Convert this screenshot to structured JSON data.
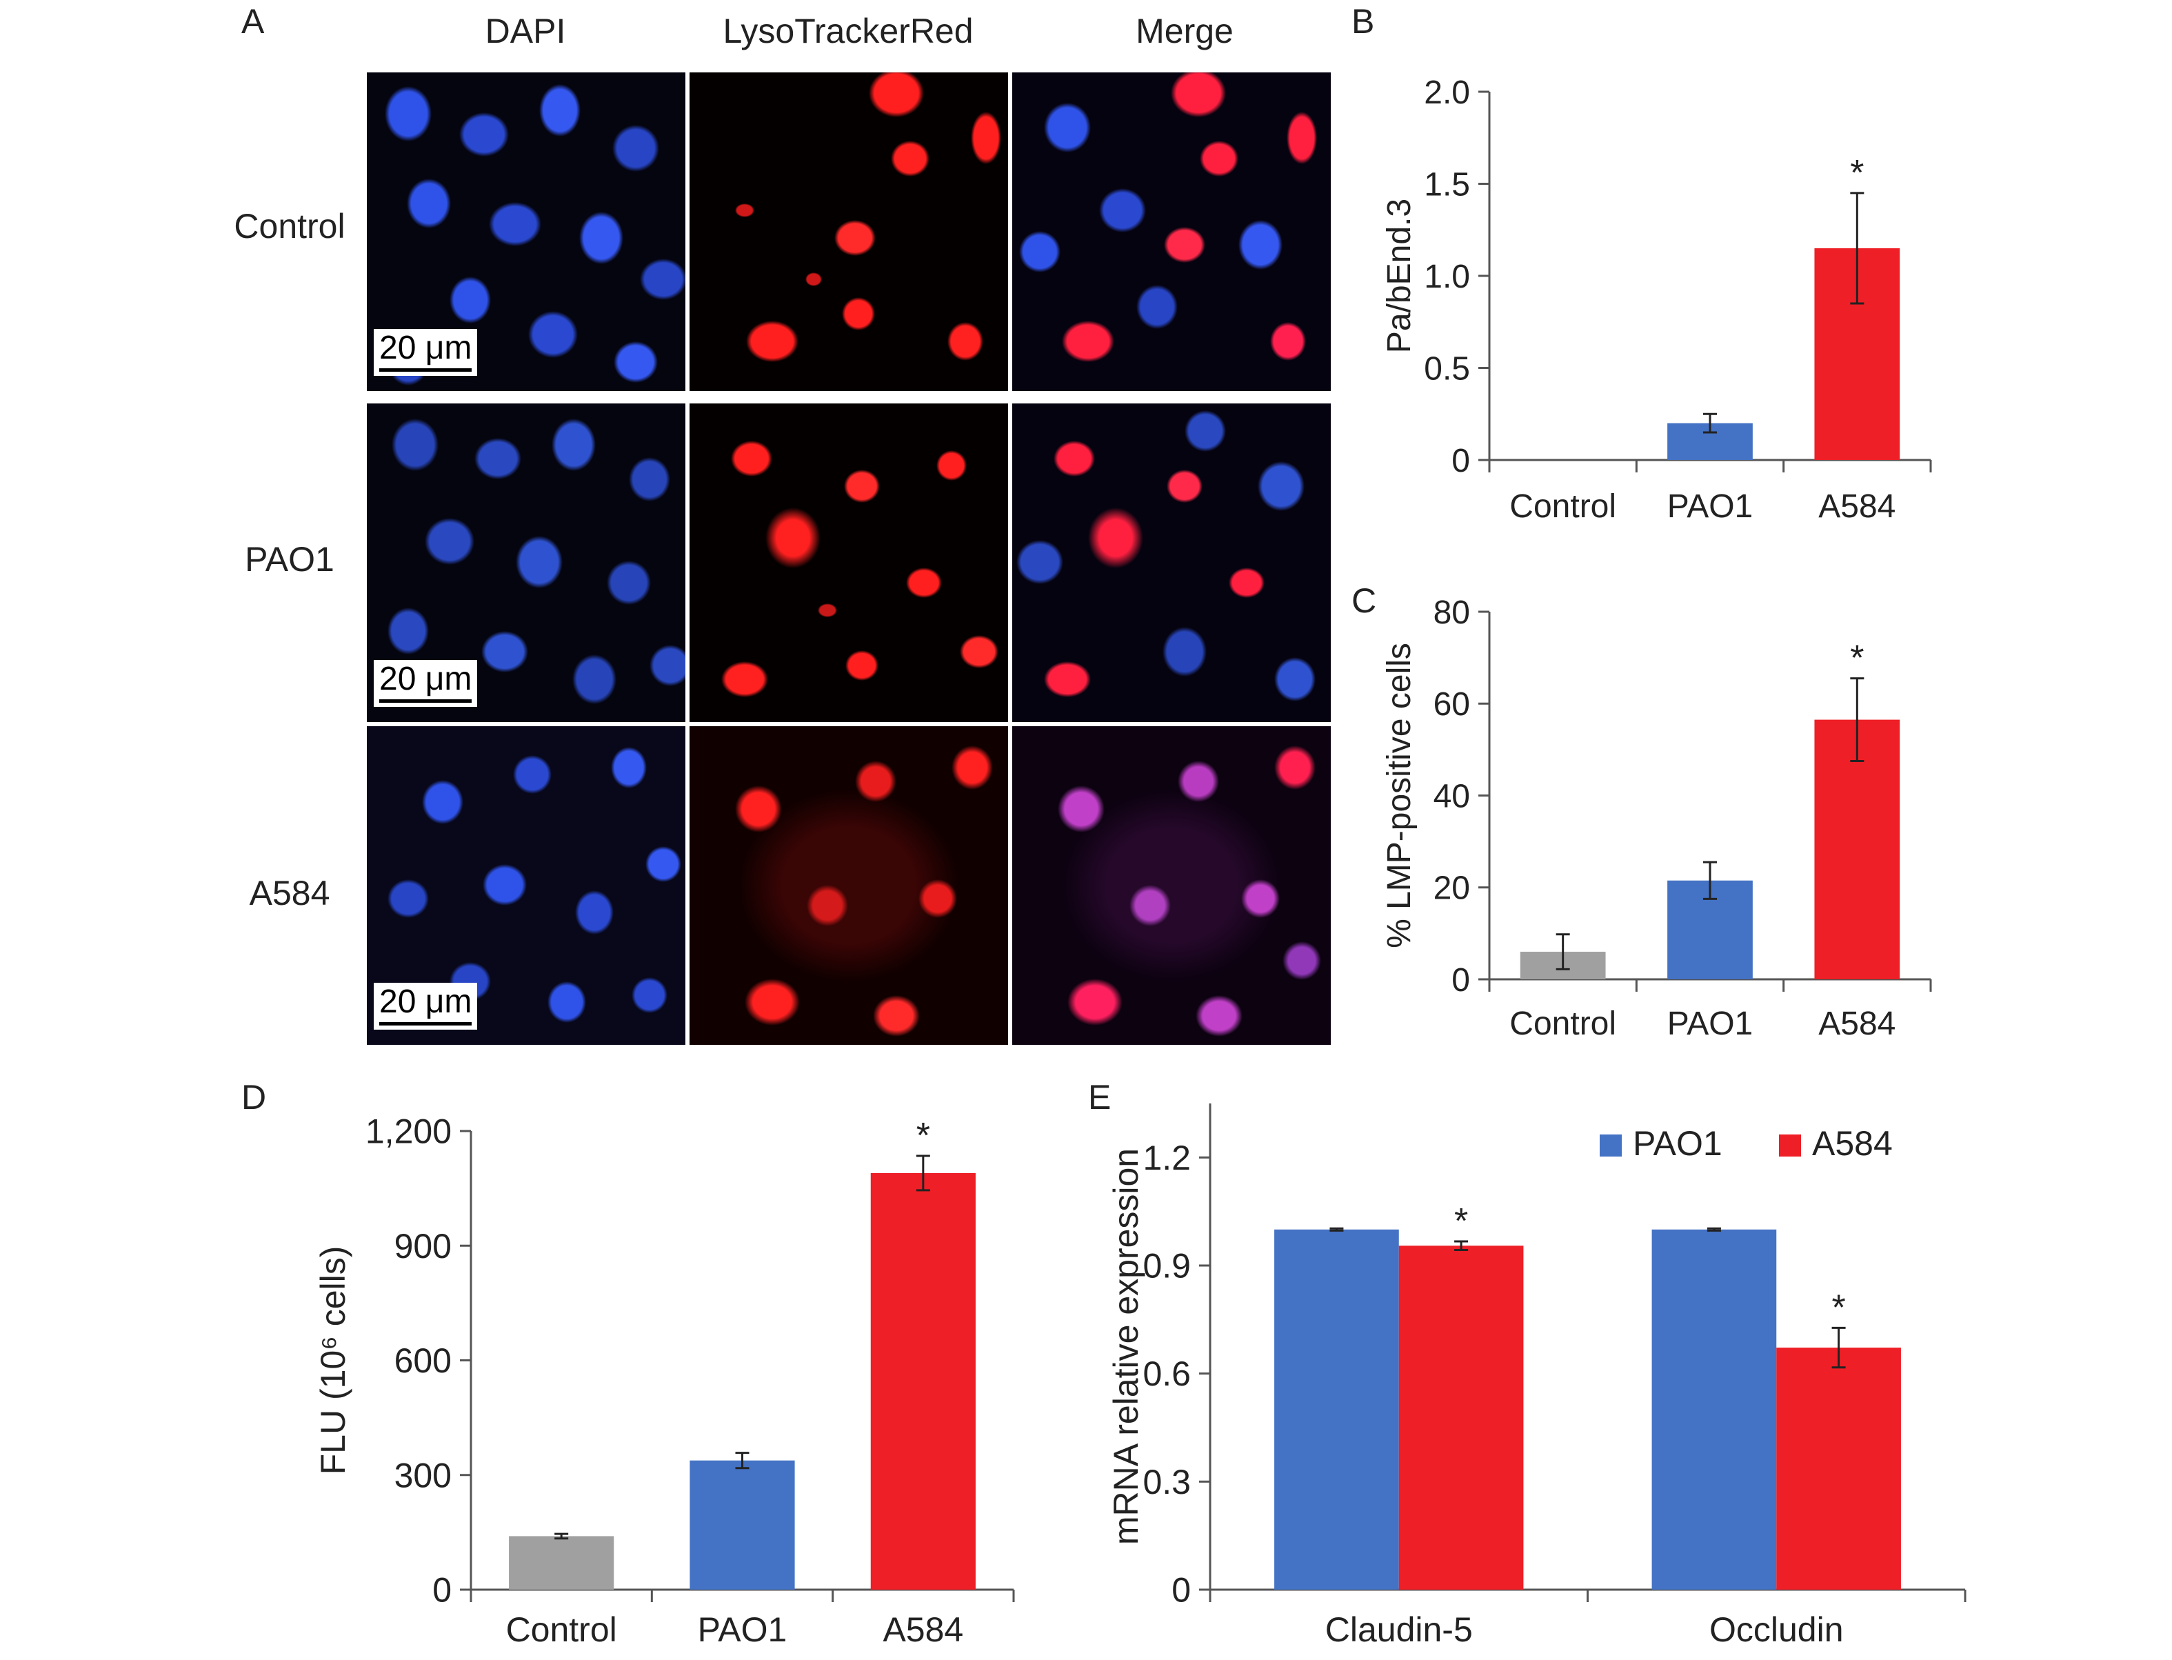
{
  "colors": {
    "control": "#a0a0a0",
    "pao1": "#4472c4",
    "a584": "#ee1f26",
    "dapi": "#2f53e8",
    "lyso": "#ff1f1f",
    "merge_mix": "#c040c8"
  },
  "panel_a": {
    "label": "A",
    "columns": [
      "DAPI",
      "LysoTrackerRed",
      "Merge"
    ],
    "rows": [
      "Control",
      "PAO1",
      "A584"
    ],
    "scale_bar": "20 μm"
  },
  "charts": [
    {
      "id": "B",
      "panel_label": "B",
      "type": "bar",
      "ylabel": "Pa/bEnd.3",
      "categories": [
        "Control",
        "PAO1",
        "A584"
      ],
      "values": [
        0,
        0.2,
        1.15
      ],
      "errors": [
        0,
        0.05,
        0.3
      ],
      "significance": [
        "",
        "",
        "*"
      ],
      "ylim": [
        0,
        2.0
      ],
      "yticks": [
        "0",
        "0.5",
        "1.0",
        "1.5",
        "2.0"
      ],
      "ytick_values": [
        0,
        0.5,
        1.0,
        1.5,
        2.0
      ],
      "bar_colors": [
        "#a0a0a0",
        "#4472c4",
        "#ee1f26"
      ]
    },
    {
      "id": "C",
      "panel_label": "C",
      "type": "bar",
      "ylabel": "% LMP-positive cells",
      "categories": [
        "Control",
        "PAO1",
        "A584"
      ],
      "values": [
        6,
        21.5,
        56.5
      ],
      "errors": [
        3.8,
        4,
        9
      ],
      "significance": [
        "",
        "",
        "*"
      ],
      "ylim": [
        0,
        80
      ],
      "yticks": [
        "0",
        "20",
        "40",
        "60",
        "80"
      ],
      "ytick_values": [
        0,
        20,
        40,
        60,
        80
      ],
      "bar_colors": [
        "#a0a0a0",
        "#4472c4",
        "#ee1f26"
      ]
    },
    {
      "id": "D",
      "panel_label": "D",
      "type": "bar",
      "ylabel": "FLU (10⁶ cells)",
      "categories": [
        "Control",
        "PAO1",
        "A584"
      ],
      "values": [
        140,
        338,
        1090
      ],
      "errors": [
        6,
        20,
        45
      ],
      "significance": [
        "",
        "",
        "*"
      ],
      "ylim": [
        0,
        1200
      ],
      "yticks": [
        "0",
        "300",
        "600",
        "900",
        "1,200"
      ],
      "ytick_values": [
        0,
        300,
        600,
        900,
        1200
      ],
      "bar_colors": [
        "#a0a0a0",
        "#4472c4",
        "#ee1f26"
      ]
    },
    {
      "id": "E",
      "panel_label": "E",
      "type": "bar",
      "ylabel": "mRNA relative expression",
      "categories": [
        "Claudin-5",
        "Occludin"
      ],
      "series": [
        {
          "name": "PAO1",
          "values": [
            1.0,
            1.0
          ],
          "errors": [
            0.003,
            0.003
          ],
          "significance": [
            "",
            ""
          ],
          "color": "#4472c4"
        },
        {
          "name": "A584",
          "values": [
            0.955,
            0.672
          ],
          "errors": [
            0.012,
            0.055
          ],
          "significance": [
            "*",
            "*"
          ],
          "color": "#ee1f26"
        }
      ],
      "ylim": [
        0,
        1.35
      ],
      "yticks": [
        "0",
        "0.3",
        "0.6",
        "0.9",
        "1.2"
      ],
      "ytick_values": [
        0,
        0.3,
        0.6,
        0.9,
        1.2
      ],
      "legend_position": "top-right"
    }
  ]
}
